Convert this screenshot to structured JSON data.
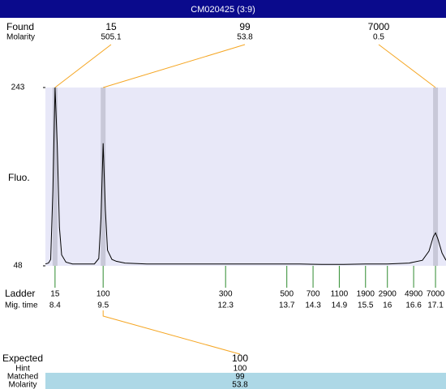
{
  "chart_data": {
    "type": "line",
    "title": "CM020425 (3:9)",
    "ylabel": "Fluo.",
    "color": "#000000",
    "xlim": [
      8.18,
      17.34
    ],
    "ylim": [
      48,
      243
    ],
    "yticks": [
      48,
      243
    ],
    "x": [
      8.18,
      8.25,
      8.3,
      8.35,
      8.4,
      8.45,
      8.5,
      8.55,
      8.65,
      8.8,
      9.0,
      9.3,
      9.4,
      9.45,
      9.5,
      9.55,
      9.6,
      9.7,
      9.8,
      10.0,
      10.5,
      11.0,
      11.5,
      12.0,
      12.5,
      13.0,
      13.5,
      14.0,
      14.5,
      15.0,
      15.5,
      16.0,
      16.5,
      16.8,
      16.95,
      17.05,
      17.1,
      17.15,
      17.25,
      17.34
    ],
    "values": [
      50,
      51,
      55,
      130,
      243,
      180,
      90,
      60,
      52,
      50,
      50,
      50,
      56,
      100,
      182,
      110,
      65,
      55,
      53,
      51,
      50,
      50,
      50,
      50,
      50,
      50,
      50,
      50,
      49.5,
      49.5,
      50,
      50,
      51,
      54,
      64,
      80,
      84,
      78,
      62,
      54
    ],
    "found": {
      "label": "Found",
      "sublabel": "Molarity",
      "peaks": [
        {
          "size": 15,
          "molarity": 505.1,
          "time": 8.4
        },
        {
          "size": 99,
          "molarity": 53.8,
          "time": 9.5
        },
        {
          "size": 7000,
          "molarity": 0.5,
          "time": 17.1
        }
      ]
    },
    "ladder": {
      "label": "Ladder",
      "sublabel": "Mig. time",
      "sizes": [
        15,
        100,
        300,
        500,
        700,
        1100,
        1900,
        2900,
        4900,
        7000
      ],
      "times": [
        8.4,
        9.5,
        12.3,
        13.7,
        14.3,
        14.9,
        15.5,
        16,
        16.6,
        17.1
      ]
    },
    "expected": {
      "label": "Expected",
      "value": 100,
      "rows": [
        {
          "label": "Hint",
          "value": 100
        },
        {
          "label": "Matched",
          "value": 99
        },
        {
          "label": "Molarity",
          "value": 53.8
        }
      ]
    }
  }
}
